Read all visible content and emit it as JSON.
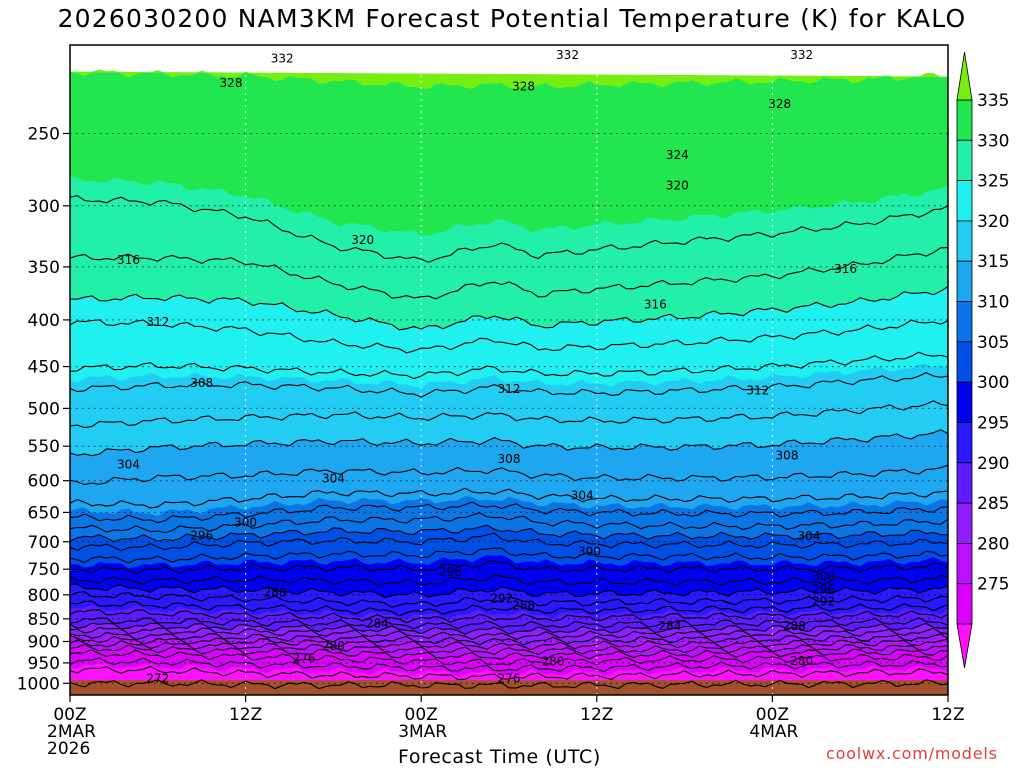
{
  "title": "2026030200 NAM3KM Forecast Potential Temperature (K) for KALO",
  "xlabel": "Forecast Time (UTC)",
  "credit": "coolwx.com/models",
  "chart_data": {
    "type": "heatmap",
    "title": "2026030200 NAM3KM Forecast Potential Temperature (K) for KALO",
    "xlabel": "Forecast Time (UTC)",
    "ylabel": "",
    "x_hours_range": [
      0,
      60
    ],
    "y_pressure_range": [
      1030,
      200
    ],
    "y_ticks": [
      250,
      300,
      350,
      400,
      450,
      500,
      550,
      600,
      650,
      700,
      750,
      800,
      850,
      900,
      950,
      1000
    ],
    "x_ticks": [
      {
        "hour": 0,
        "lines": [
          "00Z",
          "2MAR",
          "2026"
        ]
      },
      {
        "hour": 12,
        "lines": [
          "12Z"
        ]
      },
      {
        "hour": 24,
        "lines": [
          "00Z",
          "3MAR"
        ]
      },
      {
        "hour": 36,
        "lines": [
          "12Z"
        ]
      },
      {
        "hour": 48,
        "lines": [
          "00Z",
          "4MAR"
        ]
      },
      {
        "hour": 60,
        "lines": [
          "12Z"
        ]
      }
    ],
    "colorbar_labels": [
      "335",
      "330",
      "325",
      "320",
      "315",
      "310",
      "305",
      "300",
      "295",
      "290",
      "285",
      "280",
      "275"
    ],
    "colorbar_levels": [
      270,
      275,
      280,
      285,
      290,
      295,
      300,
      305,
      310,
      315,
      320,
      325,
      330,
      335,
      340
    ],
    "colors": [
      "#ff10ff",
      "#dd00ff",
      "#bb10ff",
      "#8f1eff",
      "#5d1bff",
      "#2a18ff",
      "#0000f0",
      "#0050e6",
      "#0a76e6",
      "#1ea6f0",
      "#22ccf2",
      "#20f0f0",
      "#22f0a8",
      "#22e650",
      "#77ee11"
    ],
    "ground_color": "#a0522d",
    "grid": true,
    "isotherm_profiles": [
      {
        "hour": 0,
        "p": [
          1029,
          1000,
          965,
          945,
          927,
          915,
          905,
          895,
          885,
          873,
          863,
          852,
          835,
          818,
          800,
          785,
          770,
          750,
          730,
          708,
          692,
          676,
          658,
          635,
          605,
          562,
          522,
          476,
          452,
          402,
          380,
          342,
          295,
          266,
          230,
          214,
          204,
          200
        ]
      },
      {
        "hour": 6,
        "p": [
          1029,
          1000,
          968,
          948,
          930,
          918,
          908,
          898,
          888,
          876,
          866,
          855,
          838,
          821,
          803,
          788,
          772,
          752,
          732,
          710,
          695,
          680,
          662,
          638,
          595,
          552,
          516,
          472,
          449,
          404,
          378,
          342,
          297,
          268,
          231,
          215,
          205,
          200
        ]
      },
      {
        "hour": 12,
        "p": [
          1029,
          1003,
          975,
          953,
          935,
          922,
          911,
          900,
          890,
          878,
          868,
          857,
          842,
          826,
          808,
          790,
          770,
          748,
          726,
          702,
          688,
          672,
          653,
          628,
          592,
          547,
          512,
          471,
          452,
          410,
          381,
          345,
          308,
          276,
          235,
          216,
          206,
          200
        ]
      },
      {
        "hour": 18,
        "p": [
          1029,
          1005,
          980,
          957,
          940,
          926,
          914,
          903,
          893,
          881,
          871,
          860,
          846,
          831,
          814,
          795,
          772,
          747,
          722,
          698,
          681,
          662,
          642,
          618,
          585,
          543,
          508,
          475,
          457,
          424,
          395,
          365,
          332,
          292,
          240,
          219,
          207,
          200
        ]
      },
      {
        "hour": 24,
        "p": [
          1029,
          1005,
          982,
          962,
          946,
          932,
          920,
          908,
          898,
          886,
          875,
          864,
          851,
          836,
          820,
          801,
          777,
          750,
          724,
          700,
          682,
          662,
          642,
          620,
          588,
          546,
          512,
          482,
          460,
          432,
          410,
          380,
          345,
          300,
          244,
          222,
          208,
          200
        ]
      },
      {
        "hour": 29,
        "p": [
          1029,
          1005,
          984,
          964,
          950,
          935,
          922,
          910,
          899,
          887,
          875,
          862,
          847,
          826,
          808,
          788,
          765,
          738,
          714,
          690,
          676,
          655,
          638,
          616,
          584,
          542,
          508,
          474,
          452,
          420,
          395,
          362,
          330,
          292,
          242,
          221,
          207,
          200
        ]
      },
      {
        "hour": 32,
        "p": [
          1029,
          1006,
          983,
          963,
          947,
          933,
          921,
          910,
          899,
          887,
          876,
          864,
          849,
          832,
          816,
          798,
          775,
          750,
          725,
          702,
          685,
          666,
          646,
          623,
          592,
          550,
          514,
          480,
          458,
          430,
          406,
          375,
          340,
          297,
          243,
          222,
          208,
          200
        ]
      },
      {
        "hour": 36,
        "p": [
          1029,
          1005,
          982,
          962,
          945,
          931,
          920,
          908,
          897,
          885,
          874,
          862,
          847,
          832,
          816,
          798,
          775,
          750,
          726,
          704,
          688,
          670,
          650,
          628,
          596,
          552,
          516,
          481,
          458,
          428,
          402,
          370,
          335,
          294,
          242,
          221,
          208,
          200
        ]
      },
      {
        "hour": 42,
        "p": [
          1029,
          1003,
          978,
          958,
          942,
          929,
          918,
          906,
          895,
          883,
          872,
          860,
          845,
          830,
          814,
          796,
          774,
          749,
          726,
          705,
          690,
          673,
          652,
          628,
          596,
          551,
          514,
          478,
          455,
          424,
          397,
          364,
          328,
          290,
          240,
          220,
          207,
          200
        ]
      },
      {
        "hour": 48,
        "p": [
          1029,
          1002,
          976,
          956,
          940,
          927,
          916,
          905,
          894,
          882,
          871,
          859,
          844,
          829,
          812,
          794,
          774,
          750,
          728,
          706,
          690,
          673,
          652,
          628,
          595,
          548,
          510,
          474,
          450,
          418,
          390,
          358,
          322,
          285,
          238,
          219,
          207,
          200
        ]
      },
      {
        "hour": 54,
        "p": [
          1029,
          1001,
          974,
          954,
          938,
          925,
          914,
          903,
          892,
          880,
          869,
          857,
          842,
          827,
          810,
          792,
          772,
          748,
          726,
          704,
          688,
          670,
          650,
          625,
          590,
          540,
          502,
          466,
          443,
          410,
          382,
          348,
          314,
          280,
          236,
          218,
          206,
          200
        ]
      },
      {
        "hour": 60,
        "p": [
          1029,
          1000,
          972,
          952,
          936,
          924,
          913,
          902,
          891,
          879,
          868,
          856,
          840,
          824,
          806,
          788,
          768,
          744,
          722,
          700,
          683,
          664,
          643,
          618,
          582,
          532,
          494,
          460,
          436,
          400,
          370,
          334,
          302,
          272,
          232,
          216,
          206,
          200
        ]
      }
    ],
    "isotherm_values": [
      270,
      272,
      274,
      276,
      278,
      280,
      282,
      284,
      286,
      288,
      290,
      292,
      294,
      296,
      298,
      300,
      302,
      304,
      306,
      308,
      310,
      312,
      314,
      316,
      318,
      320,
      322,
      324,
      326,
      328,
      330,
      332,
      334,
      336,
      338
    ],
    "contour_labels": [
      {
        "text": "332",
        "hour": 14.5,
        "p": 207
      },
      {
        "text": "332",
        "hour": 34,
        "p": 205
      },
      {
        "text": "332",
        "hour": 50,
        "p": 205
      },
      {
        "text": "328",
        "hour": 11,
        "p": 220
      },
      {
        "text": "328",
        "hour": 31,
        "p": 222
      },
      {
        "text": "328",
        "hour": 48.5,
        "p": 232
      },
      {
        "text": "324",
        "hour": 41.5,
        "p": 264
      },
      {
        "text": "320",
        "hour": 41.5,
        "p": 285
      },
      {
        "text": "320",
        "hour": 20,
        "p": 327
      },
      {
        "text": "316",
        "hour": 4,
        "p": 344
      },
      {
        "text": "316",
        "hour": 40,
        "p": 385
      },
      {
        "text": "316",
        "hour": 53,
        "p": 352
      },
      {
        "text": "312",
        "hour": 6,
        "p": 402
      },
      {
        "text": "312",
        "hour": 30,
        "p": 476
      },
      {
        "text": "312",
        "hour": 47,
        "p": 478
      },
      {
        "text": "308",
        "hour": 9,
        "p": 469
      },
      {
        "text": "308",
        "hour": 30,
        "p": 568
      },
      {
        "text": "308",
        "hour": 49,
        "p": 563
      },
      {
        "text": "304",
        "hour": 4,
        "p": 576
      },
      {
        "text": "304",
        "hour": 18,
        "p": 597
      },
      {
        "text": "304",
        "hour": 35,
        "p": 623
      },
      {
        "text": "304",
        "hour": 50.5,
        "p": 690
      },
      {
        "text": "300",
        "hour": 12,
        "p": 667
      },
      {
        "text": "300",
        "hour": 35.5,
        "p": 717
      },
      {
        "text": "300",
        "hour": 51.5,
        "p": 764
      },
      {
        "text": "296",
        "hour": 9,
        "p": 689
      },
      {
        "text": "296",
        "hour": 26,
        "p": 755
      },
      {
        "text": "296",
        "hour": 51.5,
        "p": 789
      },
      {
        "text": "292",
        "hour": 29.5,
        "p": 808
      },
      {
        "text": "292",
        "hour": 51.5,
        "p": 814
      },
      {
        "text": "288",
        "hour": 14,
        "p": 795
      },
      {
        "text": "288",
        "hour": 31,
        "p": 822
      },
      {
        "text": "288",
        "hour": 49.5,
        "p": 865
      },
      {
        "text": "284",
        "hour": 21,
        "p": 860
      },
      {
        "text": "284",
        "hour": 41,
        "p": 866
      },
      {
        "text": "280",
        "hour": 18,
        "p": 910
      },
      {
        "text": "280",
        "hour": 33,
        "p": 946
      },
      {
        "text": "280",
        "hour": 50,
        "p": 945
      },
      {
        "text": "276",
        "hour": 16,
        "p": 940
      },
      {
        "text": "276",
        "hour": 30,
        "p": 988
      },
      {
        "text": "272",
        "hour": 6,
        "p": 988
      }
    ]
  }
}
